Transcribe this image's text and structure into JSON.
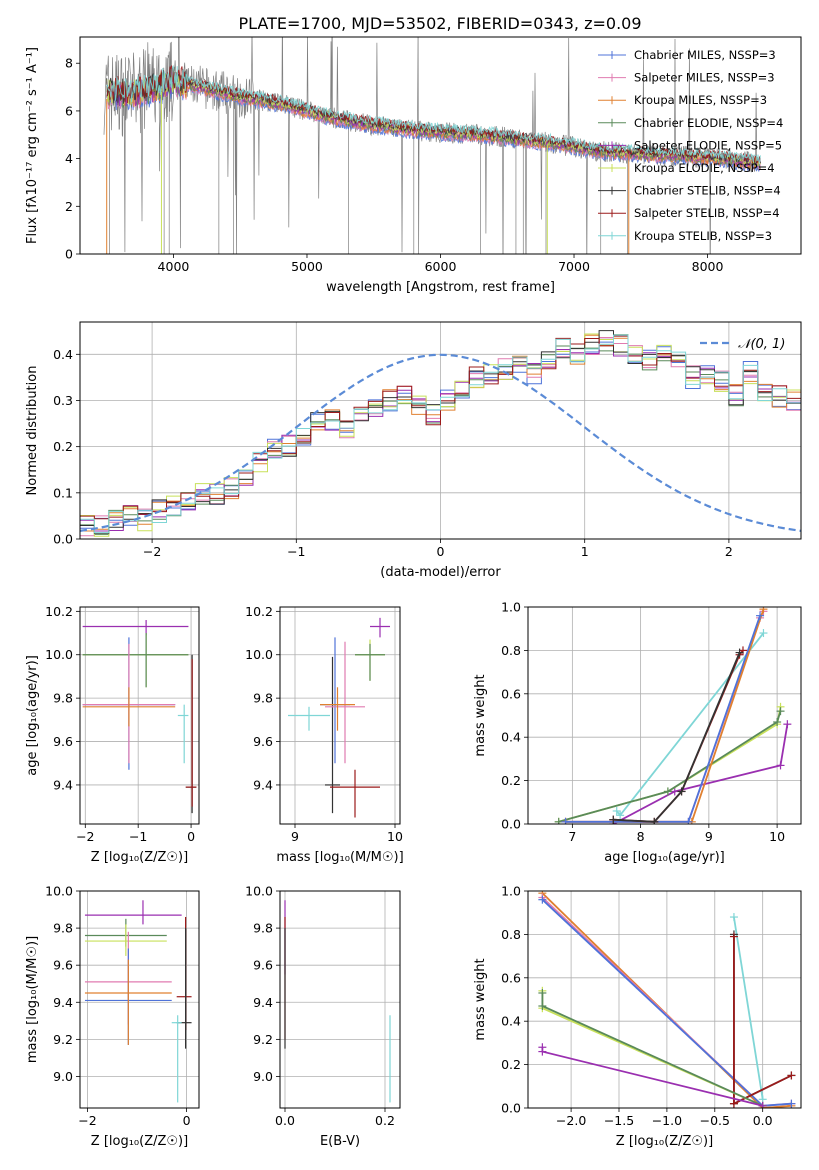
{
  "figure_title": "PLATE=1700, MJD=53502, FIBERID=0343, z=0.09",
  "palette": {
    "chabrier_miles": "#4f73d9",
    "salpeter_miles": "#e07bb0",
    "kroupa_miles": "#e08030",
    "chabrier_elodie": "#5a8a5a",
    "salpeter_elodie": "#9a2fb0",
    "kroupa_elodie": "#c8e05a",
    "chabrier_stelib": "#333333",
    "salpeter_stelib": "#9b1b1b",
    "kroupa_stelib": "#7fd6d6",
    "data_spectrum": "#808080",
    "normal_curve": "#5b8bd6"
  },
  "chart_data": [
    {
      "id": "spectrum",
      "type": "line",
      "xlabel": "wavelength [Angstrom, rest frame]",
      "ylabel": "Flux [fλ10⁻¹⁷ erg cm⁻² s⁻¹ A⁻¹]",
      "xlim": [
        3300,
        8700
      ],
      "ylim": [
        0,
        9.1
      ],
      "xticks": [
        4000,
        5000,
        6000,
        7000,
        8000
      ],
      "yticks": [
        0,
        2,
        4,
        6,
        8
      ],
      "grid": false,
      "legend_position": "top-right",
      "legend": [
        "Chabrier MILES, NSSP=3",
        "Salpeter MILES, NSSP=3",
        "Kroupa MILES, NSSP=3",
        "Chabrier ELODIE, NSSP=4",
        "Salpeter ELODIE, NSSP=5",
        "Kroupa ELODIE, NSSP=4",
        "Chabrier STELIB, NSSP=4",
        "Salpeter STELIB, NSSP=4",
        "Kroupa STELIB, NSSP=3"
      ],
      "model_continuum": {
        "x": [
          3500,
          3700,
          3900,
          4000,
          4200,
          4500,
          4800,
          5000,
          5200,
          5500,
          5800,
          6000,
          6300,
          6600,
          6900,
          7200,
          7500,
          7800,
          8100,
          8400
        ],
        "y": [
          6.8,
          6.7,
          7.0,
          7.3,
          7.0,
          6.6,
          6.3,
          6.0,
          5.7,
          5.4,
          5.2,
          5.1,
          5.0,
          4.8,
          4.6,
          4.3,
          4.2,
          4.1,
          4.0,
          3.8
        ]
      }
    },
    {
      "id": "residual_histogram",
      "type": "line",
      "xlabel": "(data-model)/error",
      "ylabel": "Normed distribution",
      "xlim": [
        -2.5,
        2.5
      ],
      "ylim": [
        0,
        0.47
      ],
      "xticks": [
        -2,
        -1,
        0,
        1,
        2
      ],
      "yticks": [
        0.0,
        0.1,
        0.2,
        0.3,
        0.4
      ],
      "grid": true,
      "legend_position": "top-right",
      "legend": [
        "𝒩(0, 1)"
      ],
      "bin_width": 0.1,
      "bins_start": -2.5,
      "values": [
        0.03,
        0.03,
        0.04,
        0.05,
        0.04,
        0.06,
        0.07,
        0.08,
        0.1,
        0.1,
        0.11,
        0.13,
        0.17,
        0.2,
        0.2,
        0.22,
        0.25,
        0.26,
        0.24,
        0.27,
        0.28,
        0.3,
        0.31,
        0.29,
        0.27,
        0.3,
        0.33,
        0.35,
        0.36,
        0.37,
        0.38,
        0.36,
        0.39,
        0.41,
        0.4,
        0.42,
        0.43,
        0.42,
        0.4,
        0.39,
        0.41,
        0.38,
        0.35,
        0.36,
        0.34,
        0.31,
        0.36,
        0.32,
        0.31,
        0.3,
        0.28,
        0.29,
        0.25,
        0.23,
        0.21,
        0.19,
        0.17,
        0.14,
        0.13,
        0.12,
        0.1,
        0.09,
        0.08,
        0.07,
        0.08,
        0.06,
        0.05,
        0.05,
        0.04,
        0.04,
        0.04
      ]
    },
    {
      "id": "age_vs_z",
      "type": "scatter",
      "xlabel": "Z [log₁₀(Z/Z☉)]",
      "ylabel": "age  [log₁₀(age/yr)]",
      "xlim": [
        -2.1,
        0.15
      ],
      "ylim": [
        9.22,
        10.22
      ],
      "xticks": [
        -2,
        -1,
        0
      ],
      "yticks": [
        9.4,
        9.6,
        9.8,
        10.0,
        10.2
      ],
      "grid": true,
      "crosses": [
        {
          "c": "salpeter_elodie",
          "x0": -2.05,
          "x1": -0.05,
          "y": 10.13,
          "y0": 10.09,
          "y1": 10.16
        },
        {
          "c": "kroupa_elodie",
          "x0": -2.05,
          "x1": -0.05,
          "y": 10.0,
          "y0": 9.85,
          "y1": 10.1
        },
        {
          "c": "chabrier_elodie",
          "x0": -2.05,
          "x1": -0.05,
          "y": 10.0,
          "y0": 9.85,
          "y1": 10.1
        },
        {
          "c": "chabrier_miles",
          "x0": -2.05,
          "x1": -0.3,
          "y": 9.77,
          "y0": 9.47,
          "y1": 10.08
        },
        {
          "c": "salpeter_miles",
          "x0": -2.05,
          "x1": -0.3,
          "y": 9.77,
          "y0": 9.5,
          "y1": 10.05
        },
        {
          "c": "kroupa_miles",
          "x0": -2.05,
          "x1": -0.3,
          "y": 9.76,
          "y0": 9.67,
          "y1": 9.85
        },
        {
          "c": "kroupa_stelib",
          "x0": -0.25,
          "x1": -0.05,
          "y": 9.72,
          "y0": 9.5,
          "y1": 9.77
        },
        {
          "c": "chabrier_stelib",
          "x0": -0.1,
          "x1": 0.1,
          "y": 9.39,
          "y0": 9.27,
          "y1": 10.0
        },
        {
          "c": "salpeter_stelib",
          "x0": -0.1,
          "x1": 0.1,
          "y": 9.39,
          "y0": 9.3,
          "y1": 9.98
        }
      ]
    },
    {
      "id": "age_vs_mass",
      "type": "scatter",
      "xlabel": "mass [log₁₀(M/M☉)]",
      "ylabel": "",
      "xlim": [
        8.85,
        10.05
      ],
      "ylim": [
        9.22,
        10.22
      ],
      "xticks": [
        9,
        10
      ],
      "yticks": [
        9.4,
        9.6,
        9.8,
        10.0,
        10.2
      ],
      "grid": true,
      "crosses": [
        {
          "c": "salpeter_elodie",
          "x0": 9.75,
          "x1": 9.95,
          "y": 10.13,
          "y0": 10.08,
          "y1": 10.17
        },
        {
          "c": "kroupa_elodie",
          "x0": 9.6,
          "x1": 9.9,
          "y": 10.0,
          "y0": 9.88,
          "y1": 10.07
        },
        {
          "c": "chabrier_elodie",
          "x0": 9.6,
          "x1": 9.9,
          "y": 10.0,
          "y0": 9.88,
          "y1": 10.05
        },
        {
          "c": "chabrier_stelib",
          "x0": 9.3,
          "x1": 9.45,
          "y": 9.4,
          "y0": 9.27,
          "y1": 9.99
        },
        {
          "c": "salpeter_stelib",
          "x0": 9.35,
          "x1": 9.85,
          "y": 9.39,
          "y0": 9.25,
          "y1": 9.47
        },
        {
          "c": "kroupa_stelib",
          "x0": 8.93,
          "x1": 9.35,
          "y": 9.72,
          "y0": 9.65,
          "y1": 9.76
        },
        {
          "c": "chabrier_miles",
          "x0": 9.25,
          "x1": 9.55,
          "y": 9.77,
          "y0": 9.5,
          "y1": 10.08
        },
        {
          "c": "salpeter_miles",
          "x0": 9.3,
          "x1": 9.7,
          "y": 9.76,
          "y0": 9.5,
          "y1": 10.06
        },
        {
          "c": "kroupa_miles",
          "x0": 9.25,
          "x1": 9.6,
          "y": 9.77,
          "y0": 9.65,
          "y1": 9.85
        }
      ]
    },
    {
      "id": "mass_weight_vs_age",
      "type": "line",
      "xlabel": "age  [log₁₀(age/yr)]",
      "ylabel": "mass weight",
      "xlim": [
        6.35,
        10.35
      ],
      "ylim": [
        0,
        1.0
      ],
      "xticks": [
        7,
        8,
        9,
        10
      ],
      "yticks": [
        0.0,
        0.2,
        0.4,
        0.6,
        0.8,
        1.0
      ],
      "grid": true,
      "series": [
        {
          "c": "kroupa_stelib",
          "x": [
            7.65,
            7.7,
            9.8
          ],
          "y": [
            0.06,
            0.04,
            0.88
          ]
        },
        {
          "c": "salpeter_elodie",
          "x": [
            7.6,
            8.5,
            10.05,
            10.15
          ],
          "y": [
            0.0,
            0.15,
            0.27,
            0.46
          ]
        },
        {
          "c": "kroupa_elodie",
          "x": [
            6.8,
            8.4,
            10.0,
            10.05
          ],
          "y": [
            0.01,
            0.15,
            0.46,
            0.54
          ]
        },
        {
          "c": "chabrier_elodie",
          "x": [
            6.8,
            8.4,
            10.0,
            10.05
          ],
          "y": [
            0.01,
            0.15,
            0.47,
            0.52
          ]
        },
        {
          "c": "salpeter_miles",
          "x": [
            6.9,
            8.7,
            9.75,
            9.8
          ],
          "y": [
            0.01,
            0.01,
            0.95,
            0.98
          ]
        },
        {
          "c": "kroupa_miles",
          "x": [
            6.9,
            8.75,
            9.8
          ],
          "y": [
            0.01,
            0.01,
            0.99
          ]
        },
        {
          "c": "chabrier_miles",
          "x": [
            6.9,
            8.7,
            9.75
          ],
          "y": [
            0.01,
            0.01,
            0.96
          ]
        },
        {
          "c": "salpeter_stelib",
          "x": [
            7.6,
            8.2,
            8.6,
            9.45,
            9.5
          ],
          "y": [
            0.02,
            0.01,
            0.15,
            0.78,
            0.8
          ]
        },
        {
          "c": "chabrier_stelib",
          "x": [
            7.6,
            8.2,
            8.6,
            9.45
          ],
          "y": [
            0.02,
            0.01,
            0.15,
            0.79
          ]
        }
      ]
    },
    {
      "id": "mass_vs_z",
      "type": "scatter",
      "xlabel": "Z [log₁₀(Z/Z☉)]",
      "ylabel": "mass [log₁₀(M/M☉)]",
      "xlim": [
        -2.15,
        0.25
      ],
      "ylim": [
        8.83,
        10.0
      ],
      "xticks": [
        -2,
        0
      ],
      "yticks": [
        9.0,
        9.2,
        9.4,
        9.6,
        9.8,
        10.0
      ],
      "grid": true,
      "crosses": [
        {
          "c": "salpeter_elodie",
          "x0": -2.05,
          "x1": -0.1,
          "y": 9.87,
          "y0": 9.82,
          "y1": 9.95
        },
        {
          "c": "chabrier_elodie",
          "x0": -2.05,
          "x1": -0.4,
          "y": 9.76,
          "y0": 9.7,
          "y1": 9.85
        },
        {
          "c": "kroupa_elodie",
          "x0": -2.05,
          "x1": -0.4,
          "y": 9.73,
          "y0": 9.65,
          "y1": 9.82
        },
        {
          "c": "salpeter_miles",
          "x0": -2.05,
          "x1": -0.3,
          "y": 9.51,
          "y0": 9.28,
          "y1": 9.78
        },
        {
          "c": "chabrier_miles",
          "x0": -2.05,
          "x1": -0.3,
          "y": 9.41,
          "y0": 9.17,
          "y1": 9.69
        },
        {
          "c": "kroupa_miles",
          "x0": -2.05,
          "x1": -0.3,
          "y": 9.45,
          "y0": 9.17,
          "y1": 9.63
        },
        {
          "c": "salpeter_stelib",
          "x0": -0.2,
          "x1": 0.1,
          "y": 9.43,
          "y0": 9.25,
          "y1": 9.86
        },
        {
          "c": "chabrier_stelib",
          "x0": -0.2,
          "x1": 0.1,
          "y": 9.29,
          "y0": 9.15,
          "y1": 9.8
        },
        {
          "c": "kroupa_stelib",
          "x0": -0.3,
          "x1": -0.1,
          "y": 9.29,
          "y0": 8.86,
          "y1": 9.33
        }
      ]
    },
    {
      "id": "mass_vs_ebv",
      "type": "scatter",
      "xlabel": "E(B-V)",
      "ylabel": "",
      "xlim": [
        -0.01,
        0.23
      ],
      "ylim": [
        8.83,
        10.0
      ],
      "xticks": [
        0.0,
        0.2
      ],
      "yticks": [
        9.0,
        9.2,
        9.4,
        9.6,
        9.8,
        10.0
      ],
      "grid": true,
      "crosses": [
        {
          "c": "salpeter_elodie",
          "x0": 0.0,
          "x1": 0.0,
          "y": 9.87,
          "y0": 9.55,
          "y1": 9.95
        },
        {
          "c": "salpeter_stelib",
          "x0": 0.0,
          "x1": 0.0,
          "y": 9.5,
          "y0": 9.2,
          "y1": 9.86
        },
        {
          "c": "chabrier_stelib",
          "x0": 0.0,
          "x1": 0.0,
          "y": 9.3,
          "y0": 9.15,
          "y1": 9.8
        },
        {
          "c": "kroupa_stelib",
          "x0": 0.21,
          "x1": 0.21,
          "y": 9.1,
          "y0": 8.86,
          "y1": 9.33
        }
      ]
    },
    {
      "id": "mass_weight_vs_z",
      "type": "line",
      "xlabel": "Z [log₁₀(Z/Z☉)]",
      "ylabel": "mass weight",
      "xlim": [
        -2.45,
        0.4
      ],
      "ylim": [
        0,
        1.0
      ],
      "xticks": [
        -2.0,
        -1.5,
        -1.0,
        -0.5,
        0.0
      ],
      "xtick_labels": [
        "−2.0",
        "−1.5",
        "−1.0",
        "−0.5",
        "0.0"
      ],
      "yticks": [
        0.0,
        0.2,
        0.4,
        0.6,
        0.8,
        1.0
      ],
      "grid": true,
      "series": [
        {
          "c": "kroupa_miles",
          "x": [
            -2.3,
            0.0,
            0.3
          ],
          "y": [
            0.99,
            0.0,
            0.01
          ]
        },
        {
          "c": "salpeter_miles",
          "x": [
            -2.3,
            0.0,
            0.3
          ],
          "y": [
            0.97,
            0.01,
            0.02
          ]
        },
        {
          "c": "chabrier_miles",
          "x": [
            -2.3,
            0.0,
            0.3
          ],
          "y": [
            0.96,
            0.01,
            0.02
          ]
        },
        {
          "c": "kroupa_stelib",
          "x": [
            -0.3,
            0.0
          ],
          "y": [
            0.88,
            0.04
          ]
        },
        {
          "c": "chabrier_stelib",
          "x": [
            -0.3,
            -0.3,
            0.3
          ],
          "y": [
            0.8,
            0.02,
            0.15
          ]
        },
        {
          "c": "salpeter_stelib",
          "x": [
            -0.3,
            -0.3,
            0.3
          ],
          "y": [
            0.79,
            0.02,
            0.15
          ]
        },
        {
          "c": "kroupa_elodie",
          "x": [
            -2.3,
            -2.3,
            0.0
          ],
          "y": [
            0.54,
            0.46,
            0.01
          ]
        },
        {
          "c": "chabrier_elodie",
          "x": [
            -2.3,
            -2.3,
            0.0
          ],
          "y": [
            0.53,
            0.47,
            0.01
          ]
        },
        {
          "c": "salpeter_elodie",
          "x": [
            -2.3,
            -2.3,
            0.0
          ],
          "y": [
            0.28,
            0.26,
            0.01
          ]
        }
      ]
    }
  ]
}
